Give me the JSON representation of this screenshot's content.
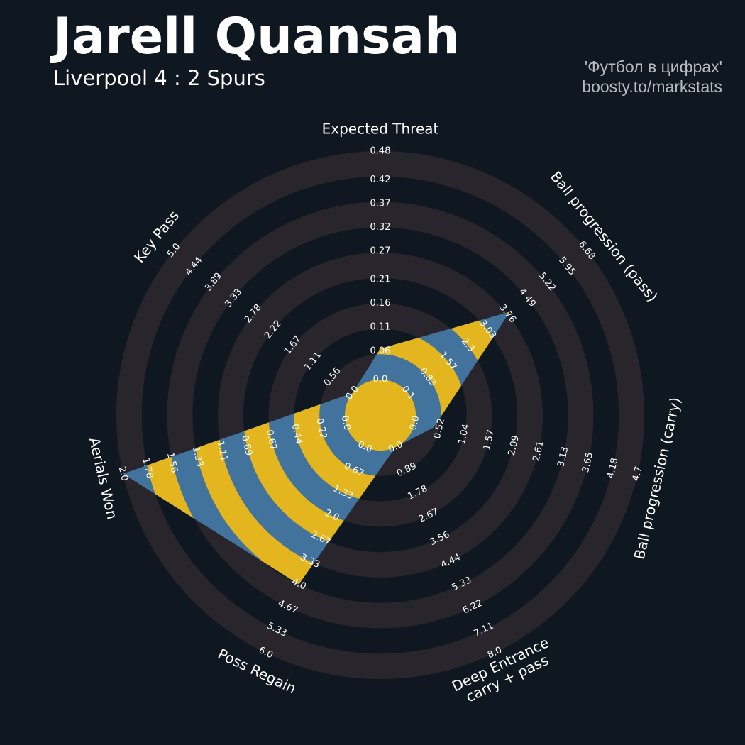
{
  "chart_data": {
    "type": "radar",
    "title": "Jarell Quansah",
    "subtitle": "Liverpool 4 : 2 Spurs",
    "credits": [
      "'Футбол в цифрах'",
      "boosty.to/markstats"
    ],
    "categories": [
      "Expected Threat",
      "Ball progression (pass)",
      "Ball progression (carry)",
      "Deep Entrance\ncarry + pass",
      "Poss Regain",
      "Aerials Won",
      "Key Pass"
    ],
    "values": [
      0.065,
      3.85,
      0.4,
      0,
      4.0,
      2.0,
      0
    ],
    "color": "#41739c",
    "ring_highlight_color": "#e3b51f",
    "ring_color": "#28252c",
    "background": "#0f1820",
    "axes": [
      {
        "ylim": [
          0,
          0.48
        ],
        "yticks": [
          {
            "value": 0,
            "label": "0.0"
          },
          0.06,
          0.11,
          0.16,
          0.21,
          0.27,
          0.32,
          0.37,
          0.42,
          0.48
        ]
      },
      {
        "ylim": [
          0.1,
          6.68
        ],
        "yticks": [
          0.1,
          0.83,
          1.57,
          2.3,
          3.03,
          3.76,
          4.49,
          5.22,
          5.95,
          6.68
        ]
      },
      {
        "ylim": [
          0,
          4.7
        ],
        "yticks": [
          {
            "value": 0,
            "label": "0.0"
          },
          0.52,
          1.04,
          1.57,
          2.09,
          2.61,
          3.13,
          3.65,
          4.18,
          4.7
        ]
      },
      {
        "ylim": [
          0,
          8
        ],
        "yticks": [
          {
            "value": 0,
            "label": "0.0"
          },
          0.89,
          1.78,
          2.67,
          3.56,
          4.44,
          5.33,
          6.22,
          7.11,
          {
            "value": 8,
            "label": "8.0"
          }
        ]
      },
      {
        "ylim": [
          0,
          6
        ],
        "yticks": [
          {
            "value": 0,
            "label": "0.0"
          },
          0.67,
          1.33,
          {
            "value": 2,
            "label": "2.0"
          },
          2.67,
          3.33,
          {
            "value": 4,
            "label": "4.0"
          },
          4.67,
          5.33,
          {
            "value": 6,
            "label": "6.0"
          }
        ]
      },
      {
        "ylim": [
          0,
          2
        ],
        "yticks": [
          {
            "value": 0,
            "label": "0.0"
          },
          0.22,
          0.44,
          0.67,
          0.89,
          1.11,
          1.33,
          1.56,
          1.78,
          {
            "value": 2,
            "label": "2.0"
          }
        ]
      },
      {
        "ylim": [
          0,
          5
        ],
        "yticks": [
          {
            "value": 0,
            "label": "0.0"
          },
          0.56,
          1.11,
          1.67,
          2.22,
          2.78,
          3.33,
          3.89,
          4.44,
          {
            "value": 5,
            "label": "5.0"
          }
        ]
      }
    ]
  }
}
